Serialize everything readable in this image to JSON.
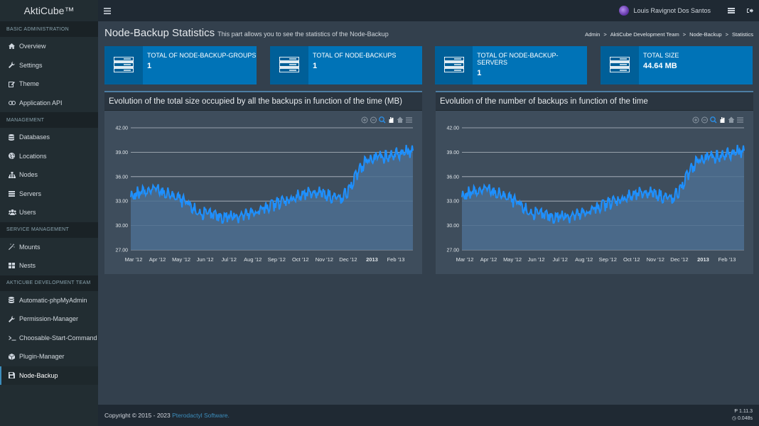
{
  "app": {
    "title": "AktiCube™"
  },
  "header": {
    "username": "Louis Ravignot Dos Santos"
  },
  "sidebar": {
    "sections": [
      {
        "title": "BASIC ADMINISTRATION",
        "items": [
          {
            "label": "Overview",
            "icon": "home-icon"
          },
          {
            "label": "Settings",
            "icon": "wrench-icon"
          },
          {
            "label": "Theme",
            "icon": "edit-icon"
          },
          {
            "label": "Application API",
            "icon": "link-icon"
          }
        ]
      },
      {
        "title": "MANAGEMENT",
        "items": [
          {
            "label": "Databases",
            "icon": "database-icon"
          },
          {
            "label": "Locations",
            "icon": "globe-icon"
          },
          {
            "label": "Nodes",
            "icon": "sitemap-icon"
          },
          {
            "label": "Servers",
            "icon": "server-icon"
          },
          {
            "label": "Users",
            "icon": "users-icon"
          }
        ]
      },
      {
        "title": "SERVICE MANAGEMENT",
        "items": [
          {
            "label": "Mounts",
            "icon": "magic-icon"
          },
          {
            "label": "Nests",
            "icon": "th-large-icon"
          }
        ]
      },
      {
        "title": "AKTICUBE DEVELOPMENT TEAM",
        "items": [
          {
            "label": "Automatic-phpMyAdmin",
            "icon": "database-icon"
          },
          {
            "label": "Permission-Manager",
            "icon": "wrench-icon"
          },
          {
            "label": "Choosable-Start-Command",
            "icon": "terminal-icon"
          },
          {
            "label": "Plugin-Manager",
            "icon": "cube-icon"
          },
          {
            "label": "Node-Backup",
            "icon": "save-icon",
            "active": true
          }
        ]
      }
    ]
  },
  "page": {
    "title": "Node-Backup Statistics",
    "subtitle": "This part allows you to see the statistics of the Node-Backup",
    "breadcrumb": [
      "Admin",
      "AktiCube Development Team",
      "Node-Backup",
      "Statistics"
    ]
  },
  "stats": [
    {
      "label": "TOTAL OF NODE-BACKUP-GROUPS",
      "value": "1",
      "icon": "server-icon"
    },
    {
      "label": "TOTAL OF NODE-BACKUPS",
      "value": "1",
      "icon": "server-icon"
    },
    {
      "label": "TOTAL OF NODE-BACKUP-SERVERS",
      "value": "1",
      "icon": "server-icon"
    },
    {
      "label": "TOTAL SIZE",
      "value": "44.64 MB",
      "icon": "server-icon"
    }
  ],
  "colors": {
    "accent": "#0073b7",
    "line": "#1e90ff",
    "area": "#4c6f91"
  },
  "chart_data": [
    {
      "type": "area",
      "title": "Evolution of the total size occupied by all the backups in function of the time (MB)",
      "xlabel": "",
      "ylabel": "",
      "ylim": [
        27,
        42
      ],
      "yticks": [
        "42.00",
        "39.00",
        "36.00",
        "33.00",
        "30.00",
        "27.00"
      ],
      "xticks": [
        "Mar '12",
        "Apr '12",
        "May '12",
        "Jun '12",
        "Jul '12",
        "Aug '12",
        "Sep '12",
        "Oct '12",
        "Nov '12",
        "Dec '12",
        "2013",
        "Feb '13"
      ],
      "grid": true,
      "x": [
        "2012-03",
        "2012-04",
        "2012-05",
        "2012-06",
        "2012-07",
        "2012-08",
        "2012-09",
        "2012-10",
        "2012-11",
        "2012-12",
        "2013-01",
        "2013-02",
        "2013-03"
      ],
      "values": [
        33.6,
        34.5,
        33.4,
        31.4,
        31.1,
        31.3,
        32.5,
        33.5,
        34.2,
        33.2,
        38.0,
        38.6,
        39.2
      ]
    },
    {
      "type": "area",
      "title": "Evolution of the number of backups in function of the time",
      "xlabel": "",
      "ylabel": "",
      "ylim": [
        27,
        42
      ],
      "yticks": [
        "42.00",
        "39.00",
        "36.00",
        "33.00",
        "30.00",
        "27.00"
      ],
      "xticks": [
        "Mar '12",
        "Apr '12",
        "May '12",
        "Jun '12",
        "Jul '12",
        "Aug '12",
        "Sep '12",
        "Oct '12",
        "Nov '12",
        "Dec '12",
        "2013",
        "Feb '13"
      ],
      "grid": true,
      "x": [
        "2012-03",
        "2012-04",
        "2012-05",
        "2012-06",
        "2012-07",
        "2012-08",
        "2012-09",
        "2012-10",
        "2012-11",
        "2012-12",
        "2013-01",
        "2013-02",
        "2013-03"
      ],
      "values": [
        33.6,
        34.5,
        33.4,
        31.4,
        31.1,
        31.3,
        32.5,
        33.5,
        34.2,
        33.2,
        38.0,
        38.6,
        39.2
      ]
    }
  ],
  "footer": {
    "copyright": "Copyright © 2015 - 2023 ",
    "brand": "Pterodactyl Software.",
    "version": "1.11.3",
    "time": "0.048s"
  }
}
